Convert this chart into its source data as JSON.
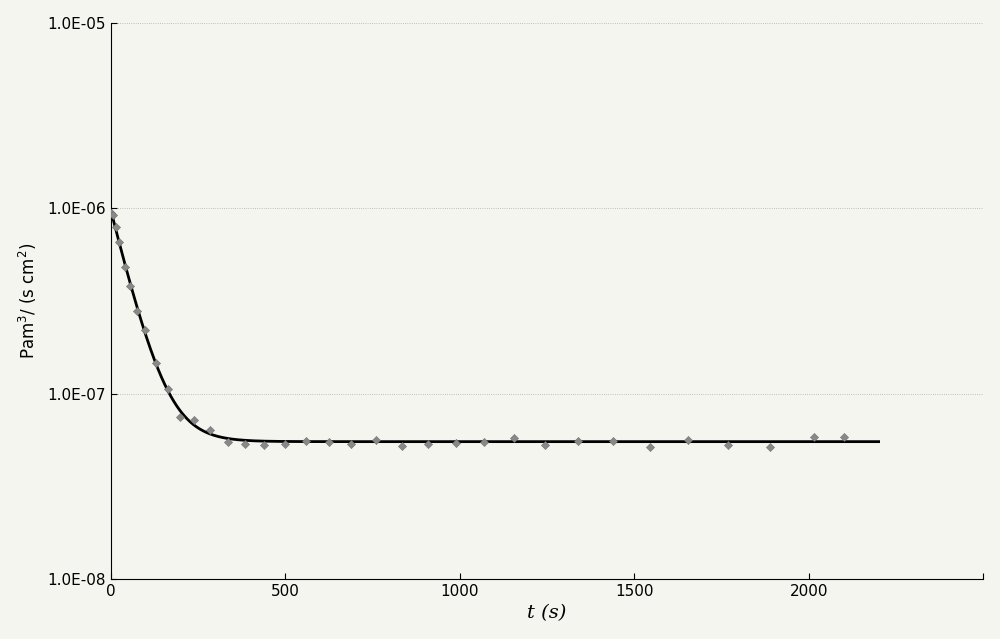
{
  "xlabel": "t (s)",
  "ylabel": "Pam³/ (s cm²)",
  "xlim": [
    0,
    2500
  ],
  "ylim_log": [
    1e-08,
    1e-05
  ],
  "yticks": [
    1e-08,
    1e-07,
    1e-06,
    1e-05
  ],
  "ytick_labels": [
    "1.0E-08",
    "1.0E-07",
    "1.0E-06",
    "1.0E-05"
  ],
  "xticks": [
    0,
    500,
    1000,
    1500,
    2000,
    2500
  ],
  "xtick_labels": [
    "0",
    "500",
    "1000",
    "1500",
    "2000",
    ""
  ],
  "curve_color": "#000000",
  "scatter_color": "#888888",
  "background_color": "#f5f5f0",
  "grid_color": "#999999",
  "fit_A": 9.3e-07,
  "fit_B": 0.018,
  "fit_C": 5.5e-08,
  "ylabel_rotation": 90,
  "ylabel_fontsize": 12,
  "xlabel_fontsize": 14,
  "tick_fontsize": 11
}
